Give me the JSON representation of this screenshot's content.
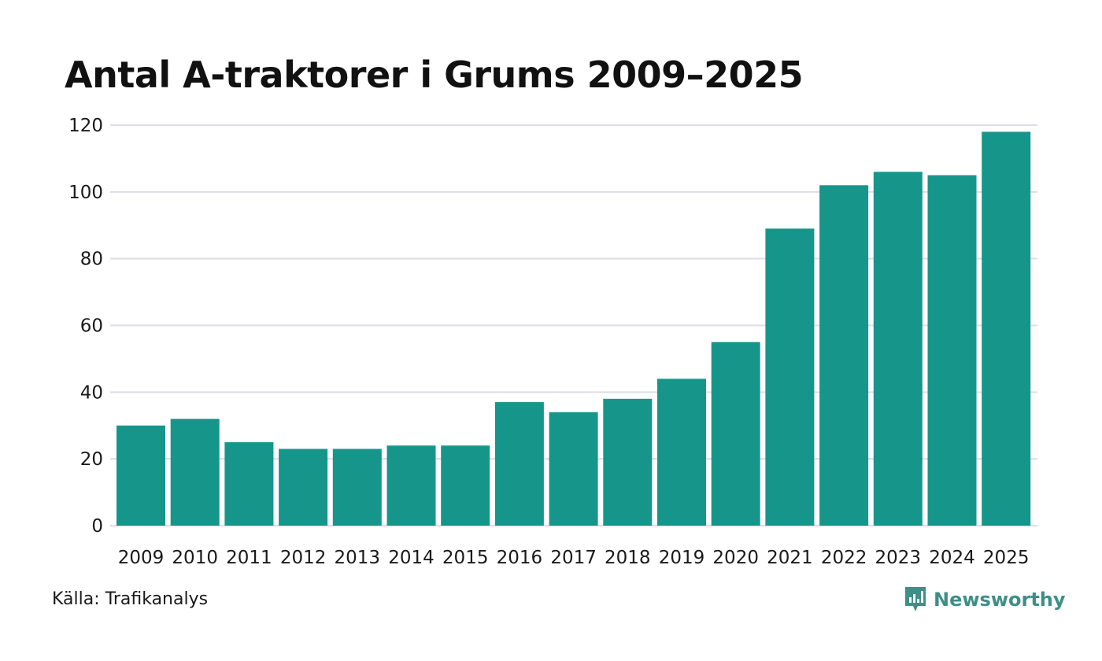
{
  "colors": {
    "bar": "#16968a",
    "grid": "#dcdde6",
    "brand": "#3d8f87"
  },
  "chart_data": {
    "type": "bar",
    "title": "Antal A-traktorer i Grums 2009–2025",
    "xlabel": "",
    "ylabel": "",
    "categories": [
      "2009",
      "2010",
      "2011",
      "2012",
      "2013",
      "2014",
      "2015",
      "2016",
      "2017",
      "2018",
      "2019",
      "2020",
      "2021",
      "2022",
      "2023",
      "2024",
      "2025"
    ],
    "values": [
      30,
      32,
      25,
      23,
      23,
      24,
      24,
      37,
      34,
      38,
      44,
      55,
      89,
      102,
      106,
      105,
      118
    ],
    "ylim": [
      0,
      120
    ],
    "yticks": [
      0,
      20,
      40,
      60,
      80,
      100,
      120
    ],
    "grid": true,
    "legend": "none"
  },
  "footer": {
    "source": "Källa: Trafikanalys",
    "brand": "Newsworthy",
    "brand_icon": "newsworthy-logo-icon"
  }
}
